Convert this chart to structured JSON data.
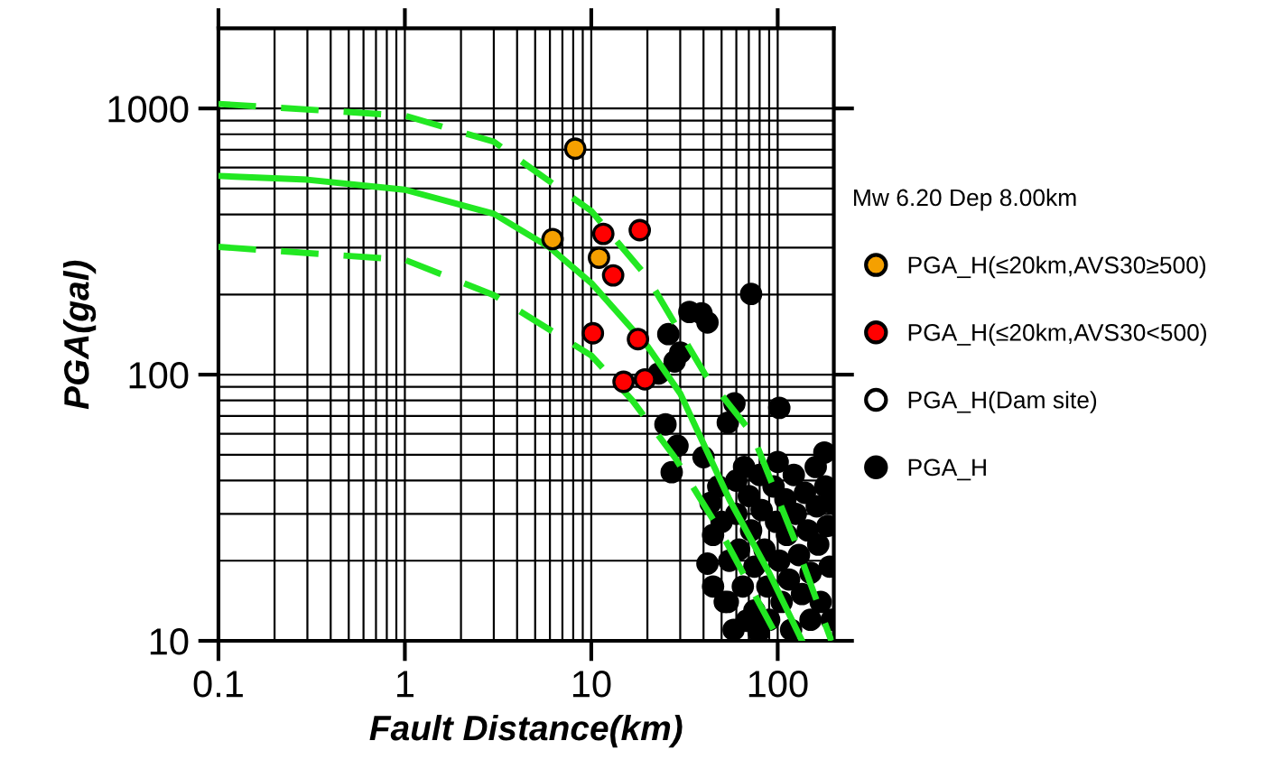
{
  "chart_data": {
    "type": "scatter",
    "xlabel": "Fault Distance(km)",
    "ylabel": "PGA(gal)",
    "legend_title": "Mw 6.20 Dep 8.00km",
    "log": "xy",
    "grid": true,
    "legend": "right",
    "marker": "circle",
    "xlim": [
      0.1,
      200
    ],
    "ylim": [
      10,
      2000
    ],
    "xticks": [
      0.1,
      {
        "value": 0.2,
        "label": null
      },
      {
        "value": 0.3,
        "label": null
      },
      {
        "value": 0.4,
        "label": null
      },
      {
        "value": 0.5,
        "label": null
      },
      {
        "value": 0.6,
        "label": null
      },
      {
        "value": 0.7,
        "label": null
      },
      {
        "value": 0.8,
        "label": null
      },
      {
        "value": 0.9,
        "label": null
      },
      1,
      {
        "value": 2,
        "label": null
      },
      {
        "value": 3,
        "label": null
      },
      {
        "value": 4,
        "label": null
      },
      {
        "value": 5,
        "label": null
      },
      {
        "value": 6,
        "label": null
      },
      {
        "value": 7,
        "label": null
      },
      {
        "value": 8,
        "label": null
      },
      {
        "value": 9,
        "label": null
      },
      10,
      {
        "value": 20,
        "label": null
      },
      {
        "value": 30,
        "label": null
      },
      {
        "value": 40,
        "label": null
      },
      {
        "value": 50,
        "label": null
      },
      {
        "value": 60,
        "label": null
      },
      {
        "value": 70,
        "label": null
      },
      {
        "value": 80,
        "label": null
      },
      {
        "value": 90,
        "label": null
      },
      100
    ],
    "yticks": [
      10,
      {
        "value": 20,
        "label": null
      },
      {
        "value": 30,
        "label": null
      },
      {
        "value": 40,
        "label": null
      },
      {
        "value": 50,
        "label": null
      },
      {
        "value": 60,
        "label": null
      },
      {
        "value": 70,
        "label": null
      },
      {
        "value": 80,
        "label": null
      },
      {
        "value": 90,
        "label": null
      },
      100,
      {
        "value": 200,
        "label": null
      },
      {
        "value": 300,
        "label": null
      },
      {
        "value": 400,
        "label": null
      },
      {
        "value": 500,
        "label": null
      },
      {
        "value": 600,
        "label": null
      },
      {
        "value": 700,
        "label": null
      },
      {
        "value": 800,
        "label": null
      },
      {
        "value": 900,
        "label": null
      },
      1000
    ],
    "series": [
      {
        "name": "PGA_H(≤20km,AVS30≥500)",
        "color": "#f5a000",
        "x": [
          8.2,
          6.2,
          11.0
        ],
        "values": [
          706,
          323,
          275
        ]
      },
      {
        "name": "PGA_H(≤20km,AVS30<500)",
        "color": "#ff0000",
        "x": [
          11.6,
          18.2,
          13.1,
          10.2,
          17.8,
          14.9,
          19.4
        ],
        "values": [
          338,
          349,
          236,
          143,
          136,
          94,
          96
        ]
      },
      {
        "name": "PGA_H(Dam site)",
        "color": "#ffffff"
      },
      {
        "name": "PGA_H",
        "color": "#000000",
        "x": [
          72,
          102,
          39,
          33.6,
          42,
          25.9,
          30,
          28,
          23,
          58.6,
          54,
          25,
          29,
          27,
          40,
          43.6,
          45,
          42,
          45,
          54,
          68,
          79,
          60,
          60,
          62,
          65,
          66,
          70,
          72,
          75,
          75,
          80,
          82,
          85,
          88,
          90,
          95,
          98,
          100,
          102,
          105,
          110,
          112,
          115,
          118,
          122,
          125,
          130,
          135,
          140,
          145,
          150,
          150,
          160,
          162,
          165,
          170,
          178,
          180,
          185,
          190,
          195,
          195,
          55,
          50,
          48,
          52,
          58
        ],
        "values": [
          201,
          75,
          170,
          172,
          157,
          142,
          121,
          112,
          101,
          78,
          66,
          65,
          54,
          43,
          49,
          33,
          25,
          19.5,
          16,
          14,
          11.9,
          10.8,
          40,
          30,
          22,
          16,
          45,
          35,
          26,
          19,
          13,
          42,
          31,
          22,
          16,
          12,
          38,
          28,
          47,
          20,
          14,
          34,
          25,
          17,
          11,
          42,
          30,
          21,
          15,
          36,
          26,
          18,
          12,
          45,
          32,
          23,
          14,
          51,
          38,
          27,
          19,
          12,
          33,
          20,
          28,
          38,
          14,
          11
        ]
      },
      {
        "type": "line",
        "marker": "none",
        "color": "#22e822",
        "line_style": "solid",
        "x": [
          0.1,
          0.3,
          1,
          3,
          6,
          10,
          20,
          30,
          55,
          90,
          135
        ],
        "values": [
          558,
          540,
          495,
          402,
          300,
          221,
          128,
          85,
          34,
          18,
          10
        ]
      },
      {
        "type": "line",
        "marker": "none",
        "color": "#22e822",
        "line_style": "dashed",
        "x": [
          0.1,
          1,
          3,
          10,
          20,
          40.5,
          73,
          123,
          194
        ],
        "values": [
          1040,
          940,
          750,
          412,
          232,
          101,
          60,
          24,
          10
        ]
      },
      {
        "type": "line",
        "marker": "none",
        "color": "#22e822",
        "line_style": "dashed",
        "x": [
          0.1,
          1,
          3,
          10,
          16.6,
          28,
          50.6,
          102
        ],
        "values": [
          302,
          270,
          199,
          118,
          80,
          49,
          25,
          10
        ]
      }
    ]
  }
}
